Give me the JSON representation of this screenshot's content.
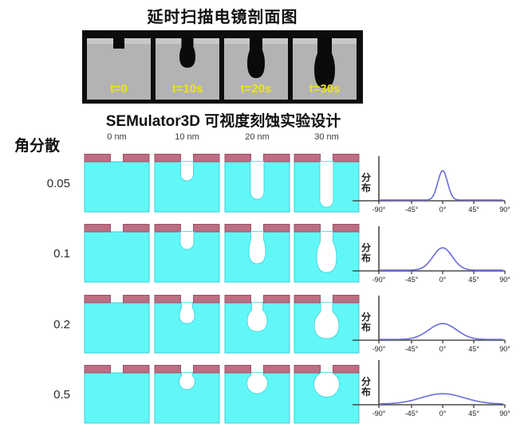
{
  "sem_section": {
    "title": "延时扫描电镜剖面图",
    "panels": [
      {
        "label": "t=0",
        "etch": "small square notch at surface"
      },
      {
        "label": "t=10s",
        "etch": "shallow teardrop etch"
      },
      {
        "label": "t=20s",
        "etch": "medium teardrop etch"
      },
      {
        "label": "t=30s",
        "etch": "deep teardrop etch"
      }
    ],
    "colors": {
      "frame": "#0d0d0d",
      "panel_gray": "#b3b3b3",
      "surface_band": "#c8c8c8",
      "etch_black": "#0a0a0a",
      "time_label": "#ece419"
    }
  },
  "sim_section": {
    "title": "SEMulator3D 可视度刻蚀实验设计",
    "row_axis_label": "角分散",
    "column_headers": [
      "0 nm",
      "10 nm",
      "20 nm",
      "30 nm"
    ],
    "rows": [
      {
        "label": "0.05",
        "cells": [
          "mask gap only",
          "narrow U hole",
          "deep narrow U hole",
          "deepest narrow U hole"
        ]
      },
      {
        "label": "0.1",
        "cells": [
          "mask gap only",
          "shallow U hole",
          "U hole with slight bulge",
          "deep hole with bulge"
        ]
      },
      {
        "label": "0.2",
        "cells": [
          "mask gap only",
          "small bulged hole",
          "bulged hole",
          "large bulged hole"
        ]
      },
      {
        "label": "0.5",
        "cells": [
          "mask gap only",
          "small round bulb",
          "round bulb",
          "wide round bulb"
        ]
      }
    ],
    "colors": {
      "mask": "#bc6e82",
      "mask_edge": "#9c5068",
      "substrate": "#62f7f7",
      "substrate_edge": "#38cfd4",
      "hole": "#ffffff"
    }
  },
  "chart_data": [
    {
      "type": "line",
      "row_label": "0.05",
      "ylabel": "分布",
      "curve": "gaussian",
      "center_deg": 0,
      "sigma_deg": 7,
      "amplitude_rel": 1.0,
      "xlim": [
        -90,
        90
      ],
      "x_ticks_deg": [
        -90,
        -45,
        0,
        45,
        90
      ],
      "x_tick_labels": [
        "-90°",
        "-45°",
        "0°",
        "45°",
        "90°"
      ],
      "color": "#6b6bdb"
    },
    {
      "type": "line",
      "row_label": "0.1",
      "ylabel": "分布",
      "curve": "gaussian",
      "center_deg": 0,
      "sigma_deg": 14,
      "amplitude_rel": 0.76,
      "xlim": [
        -90,
        90
      ],
      "x_ticks_deg": [
        -90,
        -45,
        0,
        45,
        90
      ],
      "x_tick_labels": [
        "-90°",
        "-45°",
        "0°",
        "45°",
        "90°"
      ],
      "color": "#6b6bdb"
    },
    {
      "type": "line",
      "row_label": "0.2",
      "ylabel": "分布",
      "curve": "gaussian",
      "center_deg": 0,
      "sigma_deg": 20,
      "amplitude_rel": 0.54,
      "xlim": [
        -90,
        90
      ],
      "x_ticks_deg": [
        -90,
        -45,
        0,
        45,
        90
      ],
      "x_tick_labels": [
        "-90°",
        "-45°",
        "0°",
        "45°",
        "90°"
      ],
      "color": "#6b6bdb"
    },
    {
      "type": "line",
      "row_label": "0.5",
      "ylabel": "分布",
      "curve": "gaussian",
      "center_deg": 0,
      "sigma_deg": 31,
      "amplitude_rel": 0.35,
      "xlim": [
        -90,
        90
      ],
      "x_ticks_deg": [
        -90,
        -45,
        0,
        45,
        90
      ],
      "x_tick_labels": [
        "-90°",
        "-45°",
        "0°",
        "45°",
        "90°"
      ],
      "color": "#6b6bdb"
    }
  ]
}
